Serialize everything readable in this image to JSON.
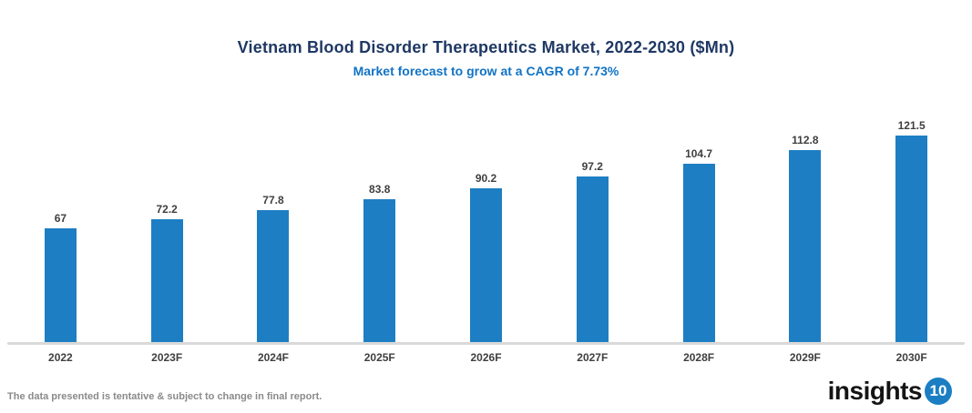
{
  "header": {
    "title": "Vietnam Blood Disorder Therapeutics Market, 2022-2030 ($Mn)",
    "subtitle": "Market forecast to grow at a CAGR of 7.73%"
  },
  "chart_data": {
    "type": "bar",
    "title": "Vietnam Blood Disorder Therapeutics Market, 2022-2030 ($Mn)",
    "subtitle": "Market forecast to grow at a CAGR of 7.73%",
    "categories": [
      "2022",
      "2023F",
      "2024F",
      "2025F",
      "2026F",
      "2027F",
      "2028F",
      "2029F",
      "2030F"
    ],
    "values": [
      67,
      72.2,
      77.8,
      83.8,
      90.2,
      97.2,
      104.7,
      112.8,
      121.5
    ],
    "value_labels": [
      "67",
      "72.2",
      "77.8",
      "83.8",
      "90.2",
      "97.2",
      "104.7",
      "112.8",
      "121.5"
    ],
    "xlabel": "",
    "ylabel": "",
    "ylim": [
      0,
      130
    ],
    "grid": false,
    "legend": false,
    "bar_color": "#1d7ec3"
  },
  "footer": {
    "note": "The data presented is tentative & subject to change in final report.",
    "logo_text": "insights",
    "logo_badge": "10"
  },
  "colors": {
    "title": "#1f3864",
    "subtitle": "#1173c5",
    "bar": "#1d7ec3",
    "data_label": "#3f3f3f",
    "axis_label": "#3f3f3f",
    "footer_text": "#8a8a8a",
    "axis_line": "#d9d9d9",
    "logo_badge_bg": "#1b7ec3"
  }
}
